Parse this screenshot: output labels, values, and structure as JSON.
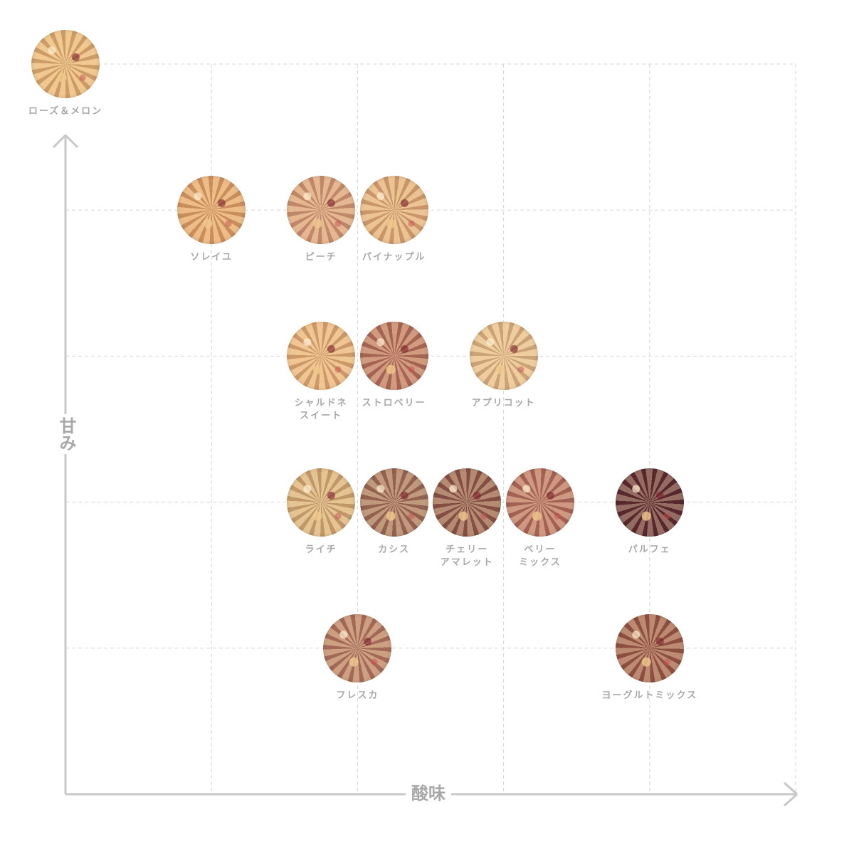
{
  "chart_data": {
    "type": "scatter",
    "xlabel": "酸味",
    "ylabel": "甘み",
    "xlim": [
      0,
      5
    ],
    "ylim": [
      0,
      5
    ],
    "grid": true,
    "points": [
      {
        "label": "ローズ＆メロン",
        "x": 0,
        "y": 5,
        "color": "#e8b877"
      },
      {
        "label": "ソレイユ",
        "x": 1,
        "y": 4,
        "color": "#e3a66a"
      },
      {
        "label": "ピーチ",
        "x": 1.75,
        "y": 4,
        "color": "#d9a07a"
      },
      {
        "label": "パイナップル",
        "x": 2.25,
        "y": 4,
        "color": "#e2b07a"
      },
      {
        "label": "シャルドネ\nスイート",
        "x": 1.75,
        "y": 3,
        "color": "#e8b47a"
      },
      {
        "label": "ストロベリー",
        "x": 2.25,
        "y": 3,
        "color": "#b8735e"
      },
      {
        "label": "アプリコット",
        "x": 3,
        "y": 3,
        "color": "#e6c08c"
      },
      {
        "label": "ライチ",
        "x": 1.75,
        "y": 2,
        "color": "#d8b27a"
      },
      {
        "label": "カシス",
        "x": 2.25,
        "y": 2,
        "color": "#a0705a"
      },
      {
        "label": "チェリー\nアマレット",
        "x": 2.75,
        "y": 2,
        "color": "#8e5a4a"
      },
      {
        "label": "ベリー\nミックス",
        "x": 3.25,
        "y": 2,
        "color": "#b4705e"
      },
      {
        "label": "パルフェ",
        "x": 4,
        "y": 2,
        "color": "#5a2a30"
      },
      {
        "label": "フレスカ",
        "x": 2,
        "y": 1,
        "color": "#b47a62"
      },
      {
        "label": "ヨーグルトミックス",
        "x": 4,
        "y": 1,
        "color": "#9a5a48"
      }
    ]
  }
}
